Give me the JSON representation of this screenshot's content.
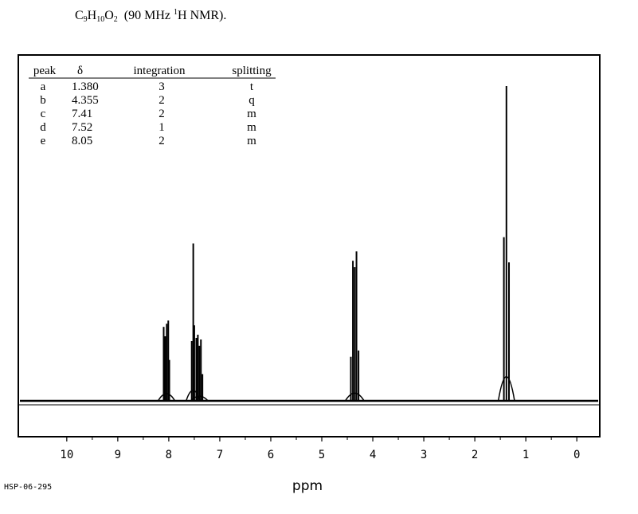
{
  "heading": {
    "formula_parts": [
      {
        "t": "C",
        "s": "n"
      },
      {
        "t": "9",
        "s": "sub"
      },
      {
        "t": "H",
        "s": "n"
      },
      {
        "t": "10",
        "s": "sub"
      },
      {
        "t": "O",
        "s": "n"
      },
      {
        "t": "2",
        "s": "sub"
      },
      {
        "t": "  (90 MHz ",
        "s": "n"
      },
      {
        "t": "1",
        "s": "sup"
      },
      {
        "t": "H NMR).",
        "s": "n"
      }
    ]
  },
  "chart_data": {
    "type": "line",
    "title": "",
    "xlabel": "ppm",
    "ylabel": "",
    "xlim": [
      10.95,
      -0.45
    ],
    "x_reversed": true,
    "ylim": [
      0,
      1
    ],
    "grid": false,
    "x_ticks": [
      "10",
      "9",
      "8",
      "7",
      "6",
      "5",
      "4",
      "3",
      "2",
      "1",
      "0"
    ],
    "table": {
      "headers": [
        "peak",
        "δ",
        "integration",
        "splitting"
      ],
      "rows": [
        [
          "a",
          "1.380",
          "3",
          "t"
        ],
        [
          "b",
          "4.355",
          "2",
          "q"
        ],
        [
          "c",
          "7.41",
          "2",
          "m"
        ],
        [
          "d",
          "7.52",
          "1",
          "m"
        ],
        [
          "e",
          "8.05",
          "2",
          "m"
        ]
      ]
    },
    "peaks": [
      {
        "group": "e",
        "x": 8.1,
        "y": 0.235
      },
      {
        "group": "e",
        "x": 8.07,
        "y": 0.205
      },
      {
        "group": "e",
        "x": 8.04,
        "y": 0.245
      },
      {
        "group": "e",
        "x": 8.01,
        "y": 0.255
      },
      {
        "group": "e",
        "x": 7.99,
        "y": 0.13
      },
      {
        "group": "d",
        "x": 7.55,
        "y": 0.19
      },
      {
        "group": "d",
        "x": 7.52,
        "y": 0.5
      },
      {
        "group": "d",
        "x": 7.5,
        "y": 0.24
      },
      {
        "group": "c",
        "x": 7.46,
        "y": 0.2
      },
      {
        "group": "c",
        "x": 7.43,
        "y": 0.21
      },
      {
        "group": "c",
        "x": 7.4,
        "y": 0.175
      },
      {
        "group": "c",
        "x": 7.37,
        "y": 0.195
      },
      {
        "group": "c",
        "x": 7.34,
        "y": 0.085
      },
      {
        "group": "b",
        "x": 4.43,
        "y": 0.14
      },
      {
        "group": "b",
        "x": 4.39,
        "y": 0.445
      },
      {
        "group": "b",
        "x": 4.355,
        "y": 0.425
      },
      {
        "group": "b",
        "x": 4.32,
        "y": 0.475
      },
      {
        "group": "b",
        "x": 4.28,
        "y": 0.16
      },
      {
        "group": "a",
        "x": 1.43,
        "y": 0.52
      },
      {
        "group": "a",
        "x": 1.38,
        "y": 1.0
      },
      {
        "group": "a",
        "x": 1.33,
        "y": 0.44
      }
    ]
  },
  "footer": {
    "code": "HSP-06-295"
  }
}
